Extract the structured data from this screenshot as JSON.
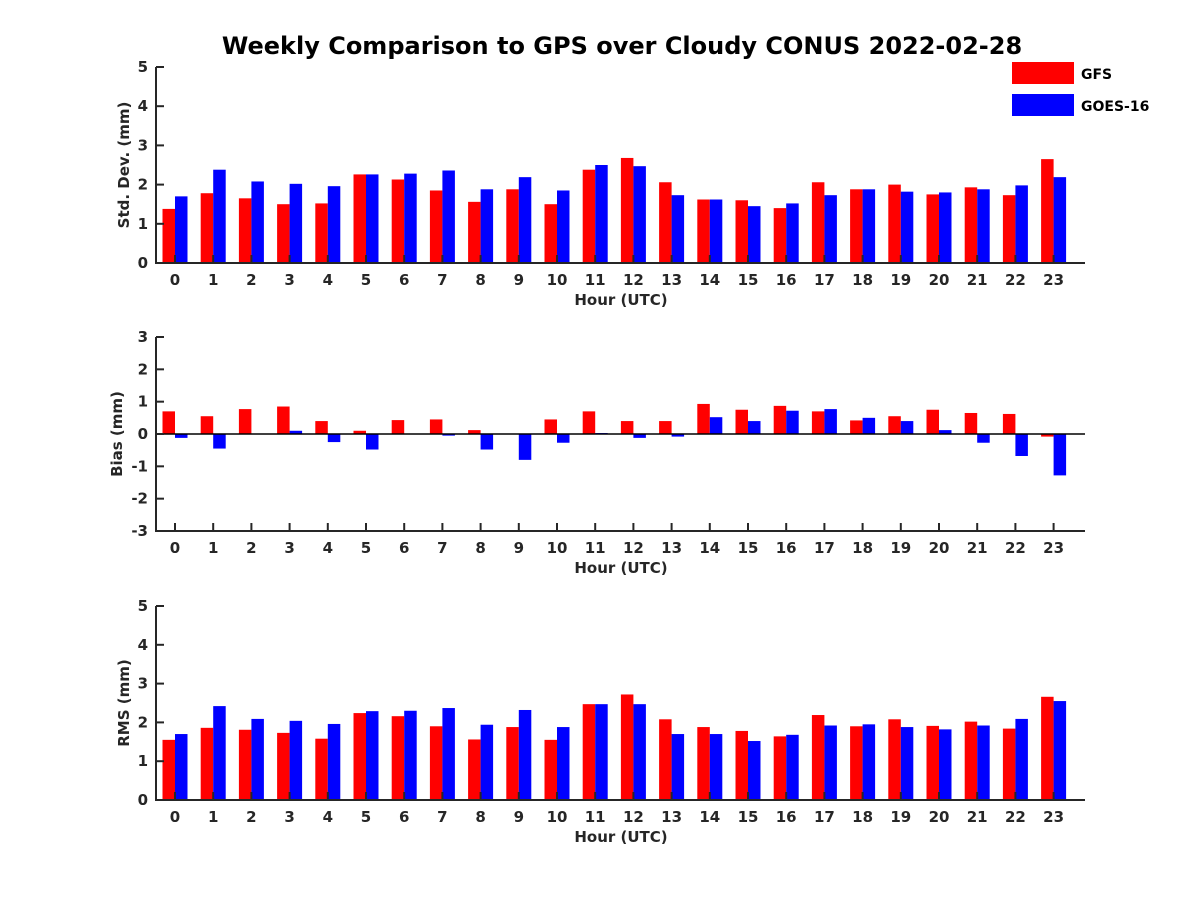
{
  "title": "Weekly Comparison to GPS over Cloudy CONUS 2022-02-28",
  "colors": {
    "GFS": "#ff0000",
    "GOES-16": "#0000ff"
  },
  "legend": {
    "placement": "top-right",
    "entries": [
      "GFS",
      "GOES-16"
    ]
  },
  "chart_data": [
    {
      "type": "bar",
      "categories": [
        "0",
        "1",
        "2",
        "3",
        "4",
        "5",
        "6",
        "7",
        "8",
        "9",
        "10",
        "11",
        "12",
        "13",
        "14",
        "15",
        "16",
        "17",
        "18",
        "19",
        "20",
        "21",
        "22",
        "23"
      ],
      "xlabel": "Hour (UTC)",
      "ylabel": "Std. Dev. (mm)",
      "ylim": [
        0,
        5
      ],
      "yticks": [
        0,
        1,
        2,
        3,
        4,
        5
      ],
      "series": [
        {
          "name": "GFS",
          "values": [
            1.38,
            1.78,
            1.65,
            1.5,
            1.52,
            2.26,
            2.13,
            1.85,
            1.56,
            1.88,
            1.5,
            2.38,
            2.68,
            2.06,
            1.62,
            1.6,
            1.4,
            2.06,
            1.88,
            2.0,
            1.75,
            1.93,
            1.73,
            2.65
          ]
        },
        {
          "name": "GOES-16",
          "values": [
            1.7,
            2.38,
            2.08,
            2.02,
            1.96,
            2.26,
            2.28,
            2.36,
            1.88,
            2.19,
            1.85,
            2.5,
            2.47,
            1.73,
            1.62,
            1.45,
            1.52,
            1.73,
            1.88,
            1.82,
            1.8,
            1.88,
            1.98,
            2.19
          ]
        }
      ]
    },
    {
      "type": "bar",
      "categories": [
        "0",
        "1",
        "2",
        "3",
        "4",
        "5",
        "6",
        "7",
        "8",
        "9",
        "10",
        "11",
        "12",
        "13",
        "14",
        "15",
        "16",
        "17",
        "18",
        "19",
        "20",
        "21",
        "22",
        "23"
      ],
      "xlabel": "Hour (UTC)",
      "ylabel": "Bias (mm)",
      "ylim": [
        -3,
        3
      ],
      "yticks": [
        -3,
        -2,
        -1,
        0,
        1,
        2,
        3
      ],
      "series": [
        {
          "name": "GFS",
          "values": [
            0.7,
            0.55,
            0.77,
            0.85,
            0.4,
            0.1,
            0.43,
            0.45,
            0.12,
            0.0,
            0.45,
            0.7,
            0.4,
            0.4,
            0.93,
            0.75,
            0.87,
            0.7,
            0.42,
            0.55,
            0.75,
            0.65,
            0.62,
            -0.08
          ]
        },
        {
          "name": "GOES-16",
          "values": [
            -0.12,
            -0.45,
            0.0,
            0.1,
            -0.25,
            -0.48,
            0.0,
            -0.05,
            -0.48,
            -0.8,
            -0.27,
            0.03,
            -0.12,
            -0.08,
            0.52,
            0.4,
            0.72,
            0.77,
            0.5,
            0.4,
            0.12,
            -0.27,
            -0.68,
            -1.28
          ]
        }
      ]
    },
    {
      "type": "bar",
      "categories": [
        "0",
        "1",
        "2",
        "3",
        "4",
        "5",
        "6",
        "7",
        "8",
        "9",
        "10",
        "11",
        "12",
        "13",
        "14",
        "15",
        "16",
        "17",
        "18",
        "19",
        "20",
        "21",
        "22",
        "23"
      ],
      "xlabel": "Hour (UTC)",
      "ylabel": "RMS (mm)",
      "ylim": [
        0,
        5
      ],
      "yticks": [
        0,
        1,
        2,
        3,
        4,
        5
      ],
      "series": [
        {
          "name": "GFS",
          "values": [
            1.55,
            1.86,
            1.81,
            1.73,
            1.58,
            2.24,
            2.16,
            1.9,
            1.56,
            1.88,
            1.55,
            2.47,
            2.72,
            2.08,
            1.88,
            1.78,
            1.64,
            2.19,
            1.9,
            2.08,
            1.91,
            2.02,
            1.84,
            2.66
          ]
        },
        {
          "name": "GOES-16",
          "values": [
            1.7,
            2.42,
            2.09,
            2.04,
            1.96,
            2.29,
            2.3,
            2.37,
            1.94,
            2.32,
            1.88,
            2.47,
            2.47,
            1.7,
            1.7,
            1.52,
            1.68,
            1.92,
            1.95,
            1.88,
            1.82,
            1.92,
            2.09,
            2.55
          ]
        }
      ]
    }
  ]
}
